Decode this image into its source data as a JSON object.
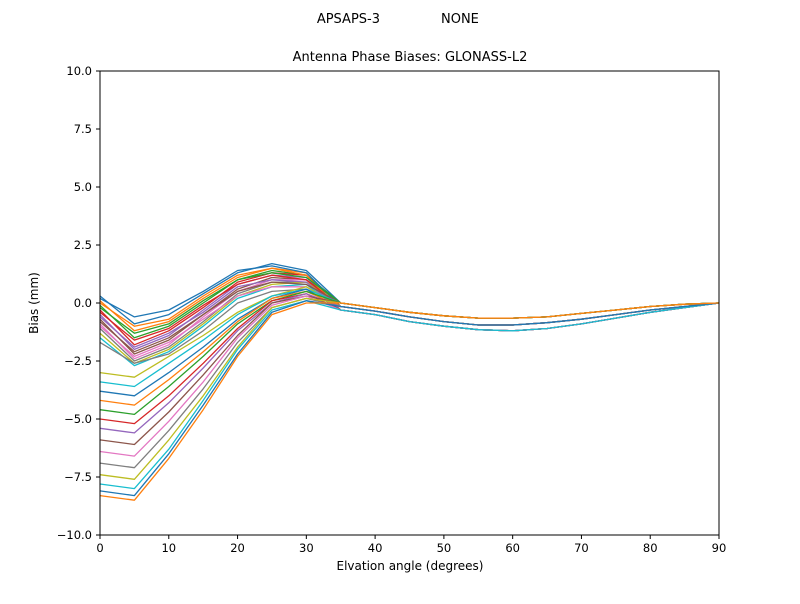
{
  "figure": {
    "suptitle_left": "APSAPS-3",
    "suptitle_right": "NONE"
  },
  "chart_data": {
    "type": "line",
    "title": "Antenna Phase Biases: GLONASS-L2",
    "xlabel": "Elvation angle (degrees)",
    "ylabel": "Bias (mm)",
    "xlim": [
      0,
      90
    ],
    "ylim": [
      -10.0,
      10.0
    ],
    "xticks": [
      0,
      10,
      20,
      30,
      40,
      50,
      60,
      70,
      80,
      90
    ],
    "yticks": [
      -10.0,
      -7.5,
      -5.0,
      -2.5,
      0.0,
      2.5,
      5.0,
      7.5,
      10.0
    ],
    "grid": false,
    "legend": "none",
    "x": [
      0,
      5,
      10,
      15,
      20,
      25,
      30,
      35,
      40,
      45,
      50,
      55,
      60,
      65,
      70,
      75,
      80,
      85,
      90
    ],
    "series": [
      {
        "color": "#1f77b4",
        "values": [
          0.3,
          -0.9,
          -0.5,
          0.4,
          1.3,
          1.7,
          1.4,
          0.0,
          -0.2,
          -0.4,
          -0.55,
          -0.65,
          -0.65,
          -0.6,
          -0.45,
          -0.3,
          -0.15,
          -0.05,
          0.0
        ]
      },
      {
        "color": "#ff7f0e",
        "values": [
          0.1,
          -1.2,
          -0.8,
          0.2,
          1.1,
          1.5,
          1.3,
          -0.15,
          -0.35,
          -0.6,
          -0.8,
          -0.95,
          -0.95,
          -0.85,
          -0.7,
          -0.5,
          -0.3,
          -0.15,
          0.0
        ]
      },
      {
        "color": "#2ca02c",
        "values": [
          -0.1,
          -1.5,
          -1.0,
          0.0,
          1.0,
          1.4,
          1.2,
          0.0,
          -0.2,
          -0.4,
          -0.55,
          -0.65,
          -0.65,
          -0.6,
          -0.45,
          -0.3,
          -0.15,
          -0.05,
          0.0
        ]
      },
      {
        "color": "#d62728",
        "values": [
          -0.3,
          -1.8,
          -1.2,
          -0.2,
          0.9,
          1.3,
          1.2,
          -0.3,
          -0.5,
          -0.8,
          -1.0,
          -1.15,
          -1.2,
          -1.1,
          -0.9,
          -0.65,
          -0.4,
          -0.2,
          0.0
        ]
      },
      {
        "color": "#9467bd",
        "values": [
          -0.5,
          -2.0,
          -1.4,
          -0.3,
          0.8,
          1.2,
          1.1,
          -0.15,
          -0.35,
          -0.6,
          -0.8,
          -0.95,
          -0.95,
          -0.85,
          -0.7,
          -0.5,
          -0.3,
          -0.15,
          0.0
        ]
      },
      {
        "color": "#8c564b",
        "values": [
          -0.7,
          -2.2,
          -1.6,
          -0.5,
          0.6,
          1.1,
          1.0,
          0.0,
          -0.2,
          -0.4,
          -0.55,
          -0.65,
          -0.65,
          -0.6,
          -0.45,
          -0.3,
          -0.15,
          -0.05,
          0.0
        ]
      },
      {
        "color": "#e377c2",
        "values": [
          -0.9,
          -2.4,
          -1.8,
          -0.6,
          0.5,
          1.0,
          1.0,
          -0.3,
          -0.5,
          -0.8,
          -1.0,
          -1.15,
          -1.2,
          -1.1,
          -0.9,
          -0.65,
          -0.4,
          -0.2,
          0.0
        ]
      },
      {
        "color": "#7f7f7f",
        "values": [
          -1.1,
          -2.5,
          -1.9,
          -0.8,
          0.4,
          0.9,
          0.9,
          -0.15,
          -0.35,
          -0.6,
          -0.8,
          -0.95,
          -0.95,
          -0.85,
          -0.7,
          -0.5,
          -0.3,
          -0.15,
          0.0
        ]
      },
      {
        "color": "#bcbd22",
        "values": [
          -1.3,
          -2.6,
          -2.0,
          -0.9,
          0.3,
          0.8,
          0.9,
          0.0,
          -0.2,
          -0.4,
          -0.55,
          -0.65,
          -0.65,
          -0.6,
          -0.45,
          -0.3,
          -0.15,
          -0.05,
          0.0
        ]
      },
      {
        "color": "#17becf",
        "values": [
          -1.5,
          -2.7,
          -2.1,
          -1.0,
          0.2,
          0.7,
          0.8,
          -0.3,
          -0.5,
          -0.8,
          -1.0,
          -1.15,
          -1.2,
          -1.1,
          -0.9,
          -0.65,
          -0.4,
          -0.2,
          0.0
        ]
      },
      {
        "color": "#1f77b4",
        "values": [
          0.2,
          -0.6,
          -0.3,
          0.5,
          1.4,
          1.6,
          1.3,
          -0.15,
          -0.35,
          -0.6,
          -0.8,
          -0.95,
          -0.95,
          -0.85,
          -0.7,
          -0.5,
          -0.3,
          -0.15,
          0.0
        ]
      },
      {
        "color": "#ff7f0e",
        "values": [
          0.0,
          -1.0,
          -0.7,
          0.3,
          1.2,
          1.5,
          1.2,
          -0.3,
          -0.5,
          -0.8,
          -1.0,
          -1.15,
          -1.2,
          -1.1,
          -0.9,
          -0.65,
          -0.4,
          -0.2,
          0.0
        ]
      },
      {
        "color": "#2ca02c",
        "values": [
          -0.2,
          -1.3,
          -0.9,
          0.1,
          1.0,
          1.3,
          1.1,
          0.0,
          -0.2,
          -0.4,
          -0.55,
          -0.65,
          -0.65,
          -0.6,
          -0.45,
          -0.3,
          -0.15,
          -0.05,
          0.0
        ]
      },
      {
        "color": "#d62728",
        "values": [
          -0.4,
          -1.6,
          -1.1,
          -0.1,
          0.8,
          1.2,
          1.0,
          -0.15,
          -0.35,
          -0.6,
          -0.8,
          -0.95,
          -0.95,
          -0.85,
          -0.7,
          -0.5,
          -0.3,
          -0.15,
          0.0
        ]
      },
      {
        "color": "#9467bd",
        "values": [
          -0.6,
          -1.9,
          -1.3,
          -0.4,
          0.7,
          1.0,
          0.9,
          -0.3,
          -0.5,
          -0.8,
          -1.0,
          -1.15,
          -1.2,
          -1.1,
          -0.9,
          -0.65,
          -0.4,
          -0.2,
          0.0
        ]
      },
      {
        "color": "#8c564b",
        "values": [
          -0.8,
          -2.1,
          -1.5,
          -0.5,
          0.5,
          0.9,
          0.8,
          0.0,
          -0.2,
          -0.4,
          -0.55,
          -0.65,
          -0.65,
          -0.6,
          -0.45,
          -0.3,
          -0.15,
          -0.05,
          0.0
        ]
      },
      {
        "color": "#e377c2",
        "values": [
          -1.0,
          -2.3,
          -1.7,
          -0.7,
          0.3,
          0.7,
          0.7,
          -0.15,
          -0.35,
          -0.6,
          -0.8,
          -0.95,
          -0.95,
          -0.85,
          -0.7,
          -0.5,
          -0.3,
          -0.15,
          0.0
        ]
      },
      {
        "color": "#7f7f7f",
        "values": [
          -1.7,
          -2.6,
          -2.2,
          -1.2,
          0.0,
          0.5,
          0.6,
          -0.3,
          -0.5,
          -0.8,
          -1.0,
          -1.15,
          -1.2,
          -1.1,
          -0.9,
          -0.65,
          -0.4,
          -0.2,
          0.0
        ]
      },
      {
        "color": "#bcbd22",
        "values": [
          -3.0,
          -3.2,
          -2.3,
          -1.4,
          -0.4,
          0.3,
          0.7,
          -0.15,
          -0.35,
          -0.6,
          -0.8,
          -0.95,
          -0.95,
          -0.85,
          -0.7,
          -0.5,
          -0.3,
          -0.15,
          0.0
        ]
      },
      {
        "color": "#17becf",
        "values": [
          -3.4,
          -3.6,
          -2.6,
          -1.6,
          -0.5,
          0.3,
          0.6,
          0.0,
          -0.2,
          -0.4,
          -0.55,
          -0.65,
          -0.65,
          -0.6,
          -0.45,
          -0.3,
          -0.15,
          -0.05,
          0.0
        ]
      },
      {
        "color": "#1f77b4",
        "values": [
          -3.8,
          -4.0,
          -3.0,
          -1.9,
          -0.7,
          0.2,
          0.6,
          -0.3,
          -0.5,
          -0.8,
          -1.0,
          -1.15,
          -1.2,
          -1.1,
          -0.9,
          -0.65,
          -0.4,
          -0.2,
          0.0
        ]
      },
      {
        "color": "#ff7f0e",
        "values": [
          -4.2,
          -4.4,
          -3.3,
          -2.1,
          -0.8,
          0.2,
          0.5,
          -0.15,
          -0.35,
          -0.6,
          -0.8,
          -0.95,
          -0.95,
          -0.85,
          -0.7,
          -0.5,
          -0.3,
          -0.15,
          0.0
        ]
      },
      {
        "color": "#2ca02c",
        "values": [
          -4.6,
          -4.8,
          -3.6,
          -2.3,
          -0.9,
          0.1,
          0.5,
          0.0,
          -0.2,
          -0.4,
          -0.55,
          -0.65,
          -0.65,
          -0.6,
          -0.45,
          -0.3,
          -0.15,
          -0.05,
          0.0
        ]
      },
      {
        "color": "#d62728",
        "values": [
          -5.0,
          -5.2,
          -4.0,
          -2.6,
          -1.1,
          0.1,
          0.4,
          -0.3,
          -0.5,
          -0.8,
          -1.0,
          -1.15,
          -1.2,
          -1.1,
          -0.9,
          -0.65,
          -0.4,
          -0.2,
          0.0
        ]
      },
      {
        "color": "#9467bd",
        "values": [
          -5.4,
          -5.6,
          -4.3,
          -2.8,
          -1.2,
          0.0,
          0.4,
          -0.15,
          -0.35,
          -0.6,
          -0.8,
          -0.95,
          -0.95,
          -0.85,
          -0.7,
          -0.5,
          -0.3,
          -0.15,
          0.0
        ]
      },
      {
        "color": "#8c564b",
        "values": [
          -5.9,
          -6.1,
          -4.7,
          -3.1,
          -1.4,
          0.0,
          0.3,
          0.0,
          -0.2,
          -0.4,
          -0.55,
          -0.65,
          -0.65,
          -0.6,
          -0.45,
          -0.3,
          -0.15,
          -0.05,
          0.0
        ]
      },
      {
        "color": "#e377c2",
        "values": [
          -6.4,
          -6.6,
          -5.1,
          -3.4,
          -1.5,
          -0.1,
          0.3,
          -0.3,
          -0.5,
          -0.8,
          -1.0,
          -1.15,
          -1.2,
          -1.1,
          -0.9,
          -0.65,
          -0.4,
          -0.2,
          0.0
        ]
      },
      {
        "color": "#7f7f7f",
        "values": [
          -6.9,
          -7.1,
          -5.5,
          -3.7,
          -1.7,
          -0.2,
          0.2,
          -0.15,
          -0.35,
          -0.6,
          -0.8,
          -0.95,
          -0.95,
          -0.85,
          -0.7,
          -0.5,
          -0.3,
          -0.15,
          0.0
        ]
      },
      {
        "color": "#bcbd22",
        "values": [
          -7.4,
          -7.6,
          -5.9,
          -4.0,
          -1.9,
          -0.2,
          0.2,
          0.0,
          -0.2,
          -0.4,
          -0.55,
          -0.65,
          -0.65,
          -0.6,
          -0.45,
          -0.3,
          -0.15,
          -0.05,
          0.0
        ]
      },
      {
        "color": "#17becf",
        "values": [
          -7.8,
          -8.0,
          -6.3,
          -4.2,
          -2.0,
          -0.3,
          0.1,
          -0.3,
          -0.5,
          -0.8,
          -1.0,
          -1.15,
          -1.2,
          -1.1,
          -0.9,
          -0.65,
          -0.4,
          -0.2,
          0.0
        ]
      },
      {
        "color": "#1f77b4",
        "values": [
          -8.1,
          -8.3,
          -6.5,
          -4.4,
          -2.2,
          -0.4,
          0.1,
          -0.15,
          -0.35,
          -0.6,
          -0.8,
          -0.95,
          -0.95,
          -0.85,
          -0.7,
          -0.5,
          -0.3,
          -0.15,
          0.0
        ]
      },
      {
        "color": "#ff7f0e",
        "values": [
          -8.3,
          -8.5,
          -6.7,
          -4.6,
          -2.3,
          -0.5,
          0.0,
          0.0,
          -0.2,
          -0.4,
          -0.55,
          -0.65,
          -0.65,
          -0.6,
          -0.45,
          -0.3,
          -0.15,
          -0.05,
          0.0
        ]
      }
    ]
  }
}
